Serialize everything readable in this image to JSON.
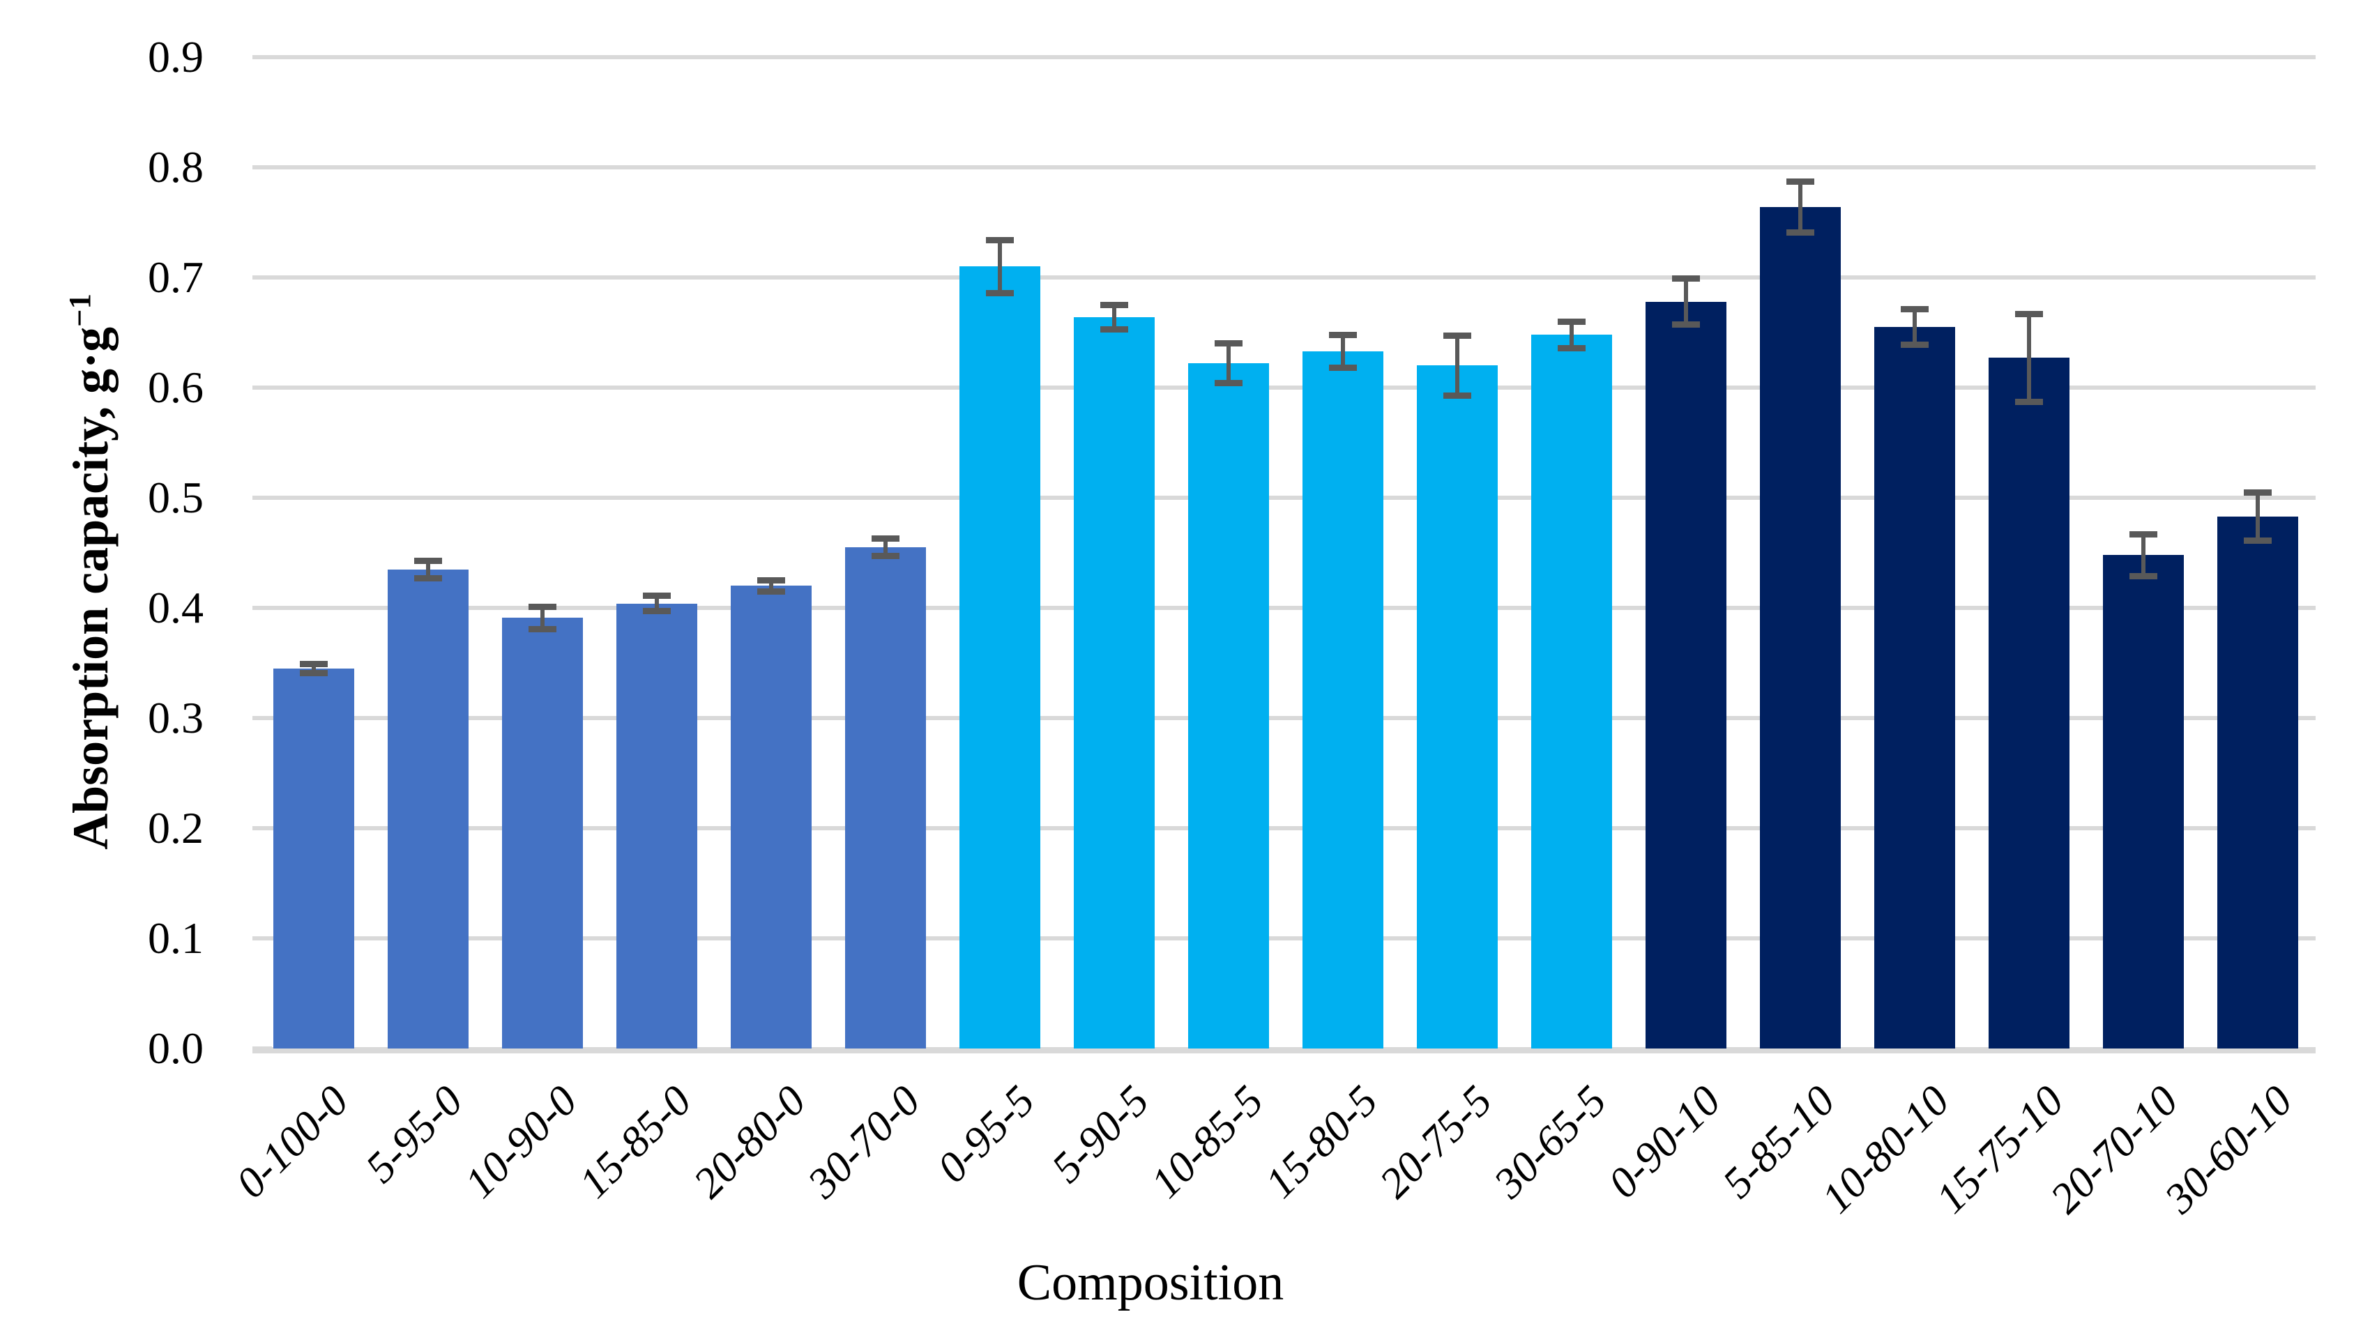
{
  "chart_data": {
    "type": "bar",
    "title": "",
    "xlabel": "Composition",
    "ylabel": "Absorption capacity, g·g⁻¹",
    "ylabel_prefix": "Absorption capacity, g·g",
    "ylabel_superscript": "−1",
    "categories": [
      "0-100-0",
      "5-95-0",
      "10-90-0",
      "15-85-0",
      "20-80-0",
      "30-70-0",
      "0-95-5",
      "5-90-5",
      "10-85-5",
      "15-80-5",
      "20-75-5",
      "30-65-5",
      "0-90-10",
      "5-85-10",
      "10-80-10",
      "15-75-10",
      "20-70-10",
      "30-60-10"
    ],
    "values": [
      0.345,
      0.435,
      0.391,
      0.404,
      0.42,
      0.455,
      0.71,
      0.664,
      0.622,
      0.633,
      0.62,
      0.648,
      0.678,
      0.764,
      0.655,
      0.627,
      0.448,
      0.483
    ],
    "errors": [
      0.004,
      0.008,
      0.01,
      0.007,
      0.005,
      0.008,
      0.024,
      0.011,
      0.018,
      0.015,
      0.027,
      0.012,
      0.021,
      0.023,
      0.016,
      0.04,
      0.019,
      0.022
    ],
    "groups": [
      {
        "color": "#4472C4",
        "start": 0,
        "end": 5
      },
      {
        "color": "#00B0F0",
        "start": 6,
        "end": 11
      },
      {
        "color": "#002060",
        "start": 12,
        "end": 17
      }
    ],
    "ytick_labels": [
      "0.0",
      "0.1",
      "0.2",
      "0.3",
      "0.4",
      "0.5",
      "0.6",
      "0.7",
      "0.8",
      "0.9"
    ],
    "ylim": [
      0.0,
      0.9
    ],
    "grid": true,
    "legend": "none",
    "colors": {
      "gridline": "#D9D9D9",
      "axis_line": "#D9D9D9",
      "error_bar": "#595959",
      "text": "#000000",
      "background": "#FFFFFF"
    }
  }
}
